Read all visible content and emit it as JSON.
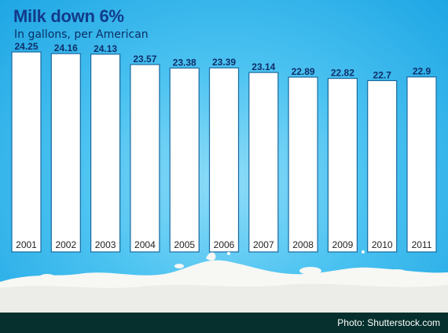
{
  "chart_data": {
    "type": "bar",
    "title": "Milk down 6%",
    "subtitle": "In gallons, per American",
    "categories": [
      "2001",
      "2002",
      "2003",
      "2004",
      "2005",
      "2006",
      "2007",
      "2008",
      "2009",
      "2010",
      "2011"
    ],
    "values": [
      24.25,
      24.16,
      24.13,
      23.57,
      23.38,
      23.39,
      23.14,
      22.89,
      22.82,
      22.7,
      22.9
    ],
    "value_labels": [
      "24.25",
      "24.16",
      "24.13",
      "23.57",
      "23.38",
      "23.39",
      "23.14",
      "22.89",
      "22.82",
      "22.7",
      "22.9"
    ],
    "xlabel": "",
    "ylabel": "",
    "grid": false,
    "colors": {
      "bar": "#ffffff",
      "label": "#0f2f6a",
      "background": "#3bb8ee"
    }
  },
  "footer": {
    "credit": "Photo: Shutterstock.com"
  }
}
